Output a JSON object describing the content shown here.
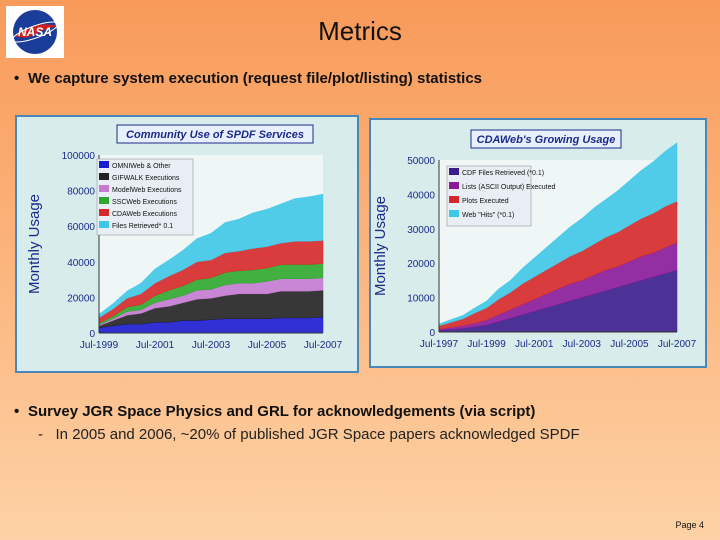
{
  "slide": {
    "title": "Metrics",
    "bullet1": "We capture system execution (request file/plot/listing) statistics",
    "bullet2": "Survey JGR Space Physics and GRL for acknowledgements (via script)",
    "sub_marker": "-",
    "sub_bullet": "In 2005 and 2006, ~20% of published JGR Space papers acknowledged SPDF",
    "page": "Page 4",
    "logo_text": "NASA"
  },
  "chart_data": [
    {
      "type": "area",
      "title": "Community Use of SPDF Services",
      "ylabel": "Monthly Usage",
      "xlabel": "",
      "ylim": [
        0,
        100000
      ],
      "y_ticks": [
        "0",
        "20000",
        "40000",
        "60000",
        "80000",
        "100000"
      ],
      "x_ticks": [
        "Jul-1999",
        "Jul-2001",
        "Jul-2003",
        "Jul-2005",
        "Jul-2007"
      ],
      "legend_position": "top-left",
      "x": [
        "1999-07",
        "2000-01",
        "2000-07",
        "2001-01",
        "2001-07",
        "2002-01",
        "2002-07",
        "2003-01",
        "2003-07",
        "2004-01",
        "2004-07",
        "2005-01",
        "2005-07",
        "2006-01",
        "2006-07",
        "2007-01",
        "2007-07"
      ],
      "series": [
        {
          "name": "OMNIWeb & Other",
          "color": "#1b1bd0",
          "values": [
            3000,
            4000,
            5000,
            5000,
            6000,
            6000,
            7000,
            7000,
            7500,
            8000,
            8000,
            8000,
            8000,
            8500,
            8500,
            8500,
            9000
          ]
        },
        {
          "name": "GIFWALK Executions",
          "color": "#222222",
          "values": [
            1000,
            3000,
            5000,
            6000,
            8000,
            9000,
            10000,
            12000,
            12000,
            13000,
            14000,
            14000,
            14000,
            15000,
            15000,
            15000,
            15000
          ]
        },
        {
          "name": "ModelWeb Executions",
          "color": "#c47ad0",
          "values": [
            500,
            1000,
            2000,
            2000,
            3000,
            4000,
            4000,
            5000,
            5000,
            6000,
            6000,
            6000,
            7000,
            7000,
            7000,
            7000,
            7000
          ]
        },
        {
          "name": "SSCWeb Executions",
          "color": "#2ea82e",
          "values": [
            1000,
            1500,
            2500,
            3000,
            4000,
            5000,
            5500,
            6000,
            6500,
            7000,
            7000,
            7500,
            7500,
            8000,
            8000,
            8000,
            8000
          ]
        },
        {
          "name": "CDAWeb Executions",
          "color": "#d62828",
          "values": [
            3000,
            4000,
            5000,
            6000,
            7000,
            8000,
            9000,
            10000,
            10000,
            11000,
            11000,
            12000,
            12000,
            12000,
            13000,
            13000,
            13000
          ]
        },
        {
          "name": "Files Retrieved* 0.1",
          "color": "#3ec8e8",
          "values": [
            2000,
            3000,
            4000,
            6000,
            8000,
            9000,
            11000,
            13000,
            15000,
            17000,
            18000,
            20000,
            21000,
            22000,
            24000,
            25000,
            26000
          ]
        }
      ]
    },
    {
      "type": "area",
      "title": "CDAWeb's Growing Usage",
      "ylabel": "Monthly Usage",
      "xlabel": "",
      "ylim": [
        0,
        50000
      ],
      "y_ticks": [
        "0",
        "10000",
        "20000",
        "30000",
        "40000",
        "50000"
      ],
      "x_ticks": [
        "Jul-1997",
        "Jul-1999",
        "Jul-2001",
        "Jul-2003",
        "Jul-2005",
        "Jul-2007"
      ],
      "legend_position": "top-left",
      "x": [
        "1997-07",
        "1998-01",
        "1998-07",
        "1999-01",
        "1999-07",
        "2000-01",
        "2000-07",
        "2001-01",
        "2001-07",
        "2002-01",
        "2002-07",
        "2003-01",
        "2003-07",
        "2004-01",
        "2004-07",
        "2005-01",
        "2005-07",
        "2006-01",
        "2006-07",
        "2007-01",
        "2007-07"
      ],
      "series": [
        {
          "name": "CDF Files Retrieved (*0.1)",
          "color": "#3a1c8c",
          "values": [
            500,
            800,
            1000,
            1500,
            2000,
            3000,
            4000,
            5000,
            6000,
            7000,
            8000,
            9000,
            10000,
            11000,
            12000,
            13000,
            14000,
            15000,
            16000,
            17000,
            18000
          ]
        },
        {
          "name": "Lists (ASCII Output) Executed",
          "color": "#8a1a9a",
          "values": [
            300,
            500,
            800,
            1000,
            1500,
            2000,
            2500,
            3000,
            3500,
            4000,
            4500,
            5000,
            5000,
            5500,
            6000,
            6000,
            6500,
            7000,
            7000,
            7500,
            8000
          ]
        },
        {
          "name": "Plots Executed",
          "color": "#d62828",
          "values": [
            1000,
            1500,
            2000,
            3000,
            3500,
            4500,
            5000,
            6000,
            6500,
            7000,
            7500,
            8000,
            8500,
            9000,
            9500,
            10000,
            10500,
            11000,
            11500,
            12000,
            12000
          ]
        },
        {
          "name": "Web \"Hits\" (*0.1)",
          "color": "#3ec8e8",
          "values": [
            500,
            800,
            1000,
            1500,
            2000,
            3000,
            3500,
            4500,
            5500,
            6500,
            7500,
            8500,
            9500,
            10500,
            11000,
            12000,
            13000,
            14000,
            15000,
            16000,
            17000
          ]
        }
      ]
    }
  ]
}
